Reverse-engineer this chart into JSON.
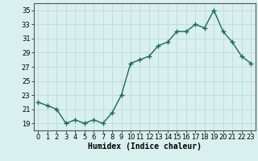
{
  "x": [
    0,
    1,
    2,
    3,
    4,
    5,
    6,
    7,
    8,
    9,
    10,
    11,
    12,
    13,
    14,
    15,
    16,
    17,
    18,
    19,
    20,
    21,
    22,
    23
  ],
  "y": [
    22,
    21.5,
    21,
    19,
    19.5,
    19,
    19.5,
    19,
    20.5,
    23,
    27.5,
    28,
    28.5,
    30,
    30.5,
    32,
    32,
    33,
    32.5,
    35,
    32,
    30.5,
    28.5,
    27.5
  ],
  "xlabel": "Humidex (Indice chaleur)",
  "ylim": [
    18,
    36
  ],
  "xlim": [
    -0.5,
    23.5
  ],
  "yticks": [
    19,
    21,
    23,
    25,
    27,
    29,
    31,
    33,
    35
  ],
  "xticks": [
    0,
    1,
    2,
    3,
    4,
    5,
    6,
    7,
    8,
    9,
    10,
    11,
    12,
    13,
    14,
    15,
    16,
    17,
    18,
    19,
    20,
    21,
    22,
    23
  ],
  "line_color": "#1a6b5a",
  "marker": "+",
  "marker_size": 4,
  "line_width": 1.0,
  "bg_color": "#d8f0ee",
  "grid_color": "#c0dbd8",
  "xlabel_fontsize": 7,
  "tick_fontsize": 6
}
